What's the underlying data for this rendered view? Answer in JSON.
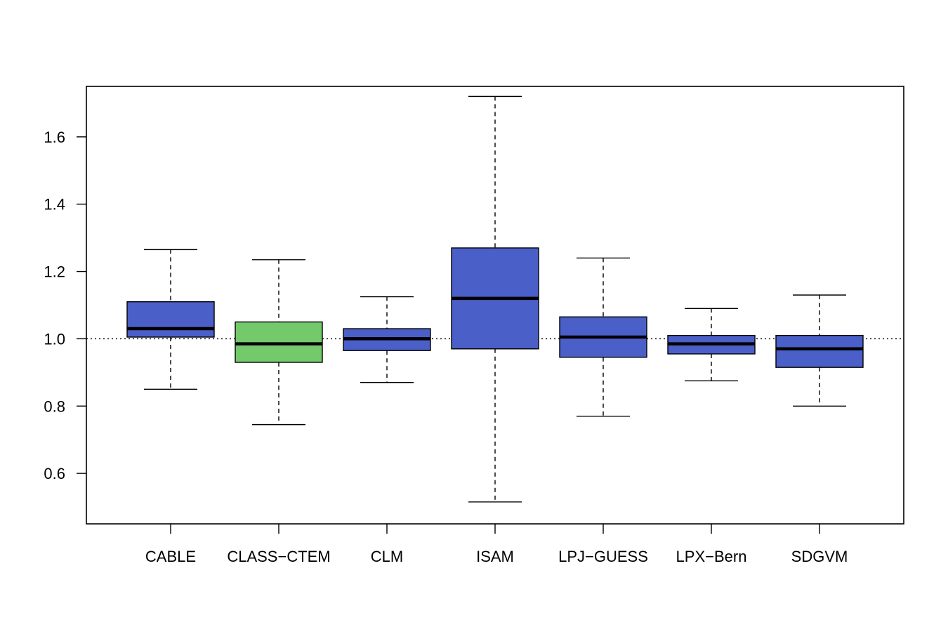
{
  "chart_data": {
    "type": "boxplot",
    "title": "",
    "xlabel": "",
    "ylabel": "",
    "ylim": [
      0.45,
      1.75
    ],
    "yticks": [
      0.6,
      0.8,
      1.0,
      1.2,
      1.4,
      1.6
    ],
    "ytick_labels": [
      "0.6",
      "0.8",
      "1.0",
      "1.2",
      "1.4",
      "1.6"
    ],
    "reference_line": 1.0,
    "grid": false,
    "categories": [
      "CABLE",
      "CLASS−CTEM",
      "CLM",
      "ISAM",
      "LPJ−GUESS",
      "LPX−Bern",
      "SDGVM"
    ],
    "boxes": [
      {
        "min": 0.85,
        "q1": 1.005,
        "median": 1.03,
        "q3": 1.11,
        "max": 1.265,
        "color": "#4a5fc8"
      },
      {
        "min": 0.745,
        "q1": 0.93,
        "median": 0.985,
        "q3": 1.05,
        "max": 1.235,
        "color": "#74c96b"
      },
      {
        "min": 0.87,
        "q1": 0.965,
        "median": 1.0,
        "q3": 1.03,
        "max": 1.125,
        "color": "#4a5fc8"
      },
      {
        "min": 0.515,
        "q1": 0.97,
        "median": 1.12,
        "q3": 1.27,
        "max": 1.72,
        "color": "#4a5fc8"
      },
      {
        "min": 0.77,
        "q1": 0.945,
        "median": 1.005,
        "q3": 1.065,
        "max": 1.24,
        "color": "#4a5fc8"
      },
      {
        "min": 0.875,
        "q1": 0.955,
        "median": 0.985,
        "q3": 1.01,
        "max": 1.09,
        "color": "#4a5fc8"
      },
      {
        "min": 0.8,
        "q1": 0.915,
        "median": 0.97,
        "q3": 1.01,
        "max": 1.13,
        "color": "#4a5fc8"
      }
    ]
  }
}
